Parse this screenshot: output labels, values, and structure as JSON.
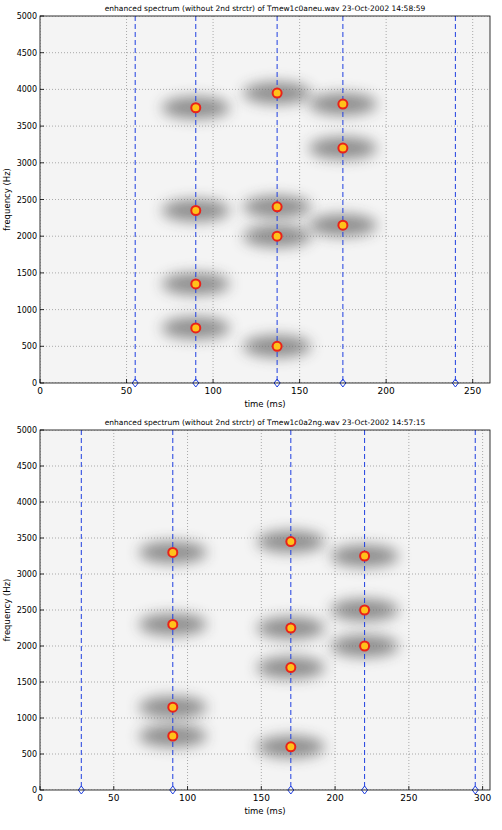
{
  "chart_data": [
    {
      "type": "scatter",
      "title": "enhanced spectrum (without 2nd strctr) of Tmew1c0aneu.wav 23-Oct-2002 14:58:59",
      "x_label": "time (ms)",
      "y_label": "frequency (Hz)",
      "x": [
        90,
        90,
        90,
        90,
        137,
        137,
        137,
        137,
        175,
        175,
        175
      ],
      "values": [
        750,
        1350,
        2350,
        3750,
        500,
        2000,
        2400,
        3950,
        2150,
        3200,
        3800
      ],
      "vlines": [
        55,
        90,
        137,
        175,
        240
      ],
      "color": "#e8231a",
      "marker": "circle",
      "xlim": [
        0,
        260
      ],
      "ylim": [
        0,
        5000
      ],
      "xticks": [
        0,
        50,
        100,
        150,
        200,
        250
      ],
      "yticks": [
        0,
        500,
        1000,
        1500,
        2000,
        2500,
        3000,
        3500,
        4000,
        4500,
        5000
      ],
      "grid": true
    },
    {
      "type": "scatter",
      "title": "enhanced spectrum (without 2nd strctr) of Tmew1c0a2ng.wav 23-Oct-2002 14:57:15",
      "x_label": "time (ms)",
      "y_label": "frequency (Hz)",
      "x": [
        90,
        90,
        90,
        90,
        170,
        170,
        170,
        170,
        220,
        220,
        220
      ],
      "values": [
        750,
        1150,
        2300,
        3300,
        600,
        1700,
        2250,
        3450,
        2000,
        2500,
        3250
      ],
      "vlines": [
        28,
        90,
        170,
        220,
        295
      ],
      "color": "#e8231a",
      "marker": "circle",
      "xlim": [
        0,
        305
      ],
      "ylim": [
        0,
        5000
      ],
      "xticks": [
        0,
        50,
        100,
        150,
        200,
        250,
        300
      ],
      "yticks": [
        0,
        500,
        1000,
        1500,
        2000,
        2500,
        3000,
        3500,
        4000,
        4500,
        5000
      ],
      "grid": true
    }
  ]
}
